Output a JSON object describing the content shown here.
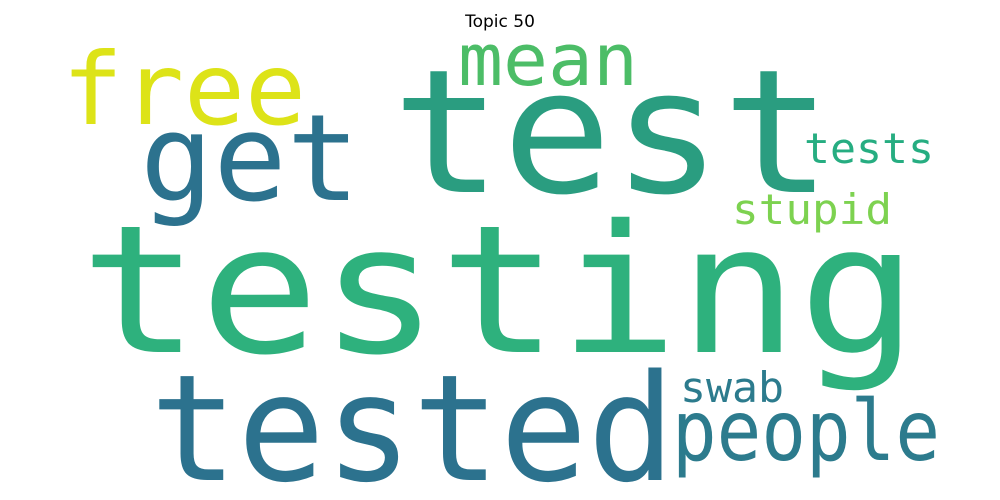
{
  "title": "Topic 50",
  "words": [
    {
      "text": "testing",
      "color": "#2eb17d"
    },
    {
      "text": "test",
      "color": "#2a9d80"
    },
    {
      "text": "tested",
      "color": "#2c728e"
    },
    {
      "text": "get",
      "color": "#2c728e"
    },
    {
      "text": "free",
      "color": "#dde318"
    },
    {
      "text": "mean",
      "color": "#4cbd67"
    },
    {
      "text": "people",
      "color": "#2c7b8d"
    },
    {
      "text": "tests",
      "color": "#26ad81"
    },
    {
      "text": "stupid",
      "color": "#7dd250"
    },
    {
      "text": "swab",
      "color": "#2c7b8d"
    }
  ]
}
